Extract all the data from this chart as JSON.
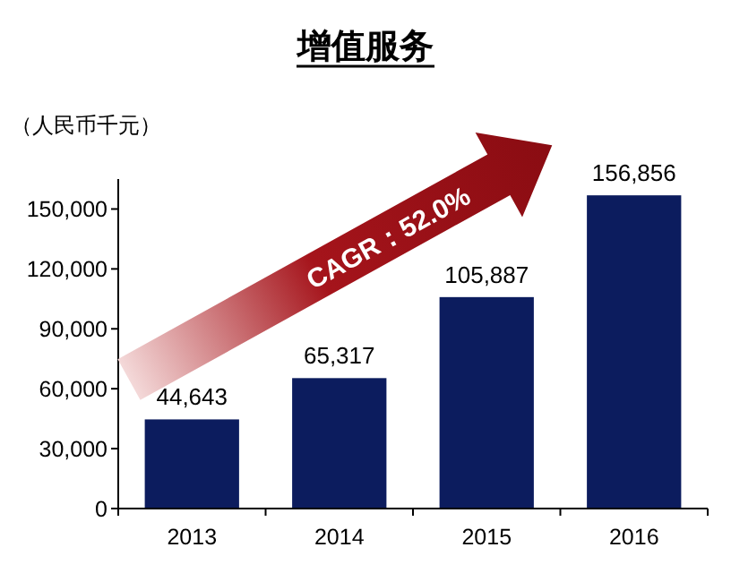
{
  "chart_data": {
    "type": "bar",
    "title": "增值服务",
    "ylabel": "（人民币千元）",
    "categories": [
      "2013",
      "2014",
      "2015",
      "2016"
    ],
    "values": [
      44643,
      65317,
      105887,
      156856
    ],
    "color": "#0c1c5e",
    "ylim": [
      0,
      165000
    ],
    "yticks": [
      {
        "value": 0,
        "label": "0"
      },
      {
        "value": 30000,
        "label": "30,000"
      },
      {
        "value": 60000,
        "label": "60,000"
      },
      {
        "value": 90000,
        "label": "90,000"
      },
      {
        "value": 120000,
        "label": "120,000"
      },
      {
        "value": 150000,
        "label": "150,000"
      }
    ],
    "value_labels": [
      "44,643",
      "65,317",
      "105,887",
      "156,856"
    ],
    "annotations": [
      "CAGR：52.0%"
    ],
    "grid": false
  }
}
